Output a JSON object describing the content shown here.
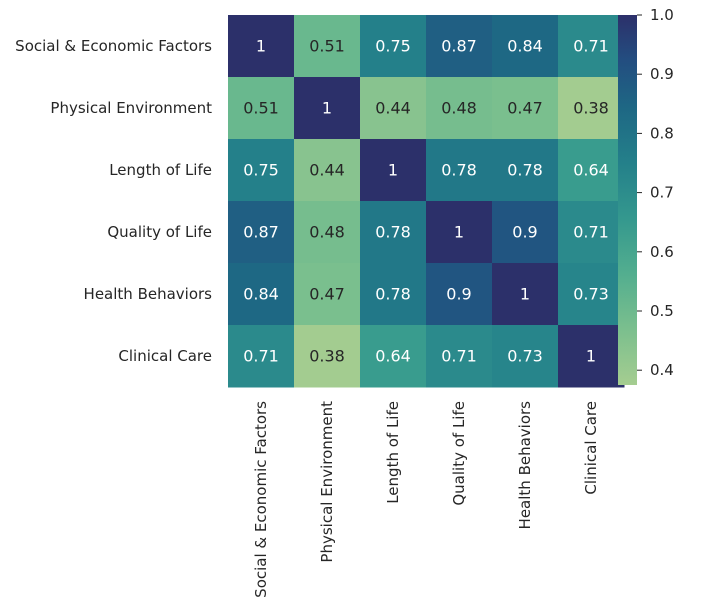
{
  "chart_data": {
    "type": "heatmap",
    "title": "",
    "xlabel": "",
    "ylabel": "",
    "row_labels": [
      "Social & Economic Factors",
      "Physical Environment",
      "Length of Life",
      "Quality of Life",
      "Health Behaviors",
      "Clinical Care"
    ],
    "col_labels": [
      "Social & Economic Factors",
      "Physical Environment",
      "Length of Life",
      "Quality of Life",
      "Health Behaviors",
      "Clinical Care"
    ],
    "values": [
      [
        1,
        0.51,
        0.75,
        0.87,
        0.84,
        0.71
      ],
      [
        0.51,
        1,
        0.44,
        0.48,
        0.47,
        0.38
      ],
      [
        0.75,
        0.44,
        1,
        0.78,
        0.78,
        0.64
      ],
      [
        0.87,
        0.48,
        0.78,
        1,
        0.9,
        0.71
      ],
      [
        0.84,
        0.47,
        0.78,
        0.9,
        1,
        0.73
      ],
      [
        0.71,
        0.38,
        0.64,
        0.71,
        0.73,
        1
      ]
    ],
    "colorbar": {
      "range": [
        0.375,
        1.0
      ],
      "ticks": [
        "0.4",
        "0.5",
        "0.6",
        "0.7",
        "0.8",
        "0.9",
        "1.0"
      ],
      "colormap": "crest"
    },
    "grid": false,
    "legend": "colorbar-right"
  }
}
